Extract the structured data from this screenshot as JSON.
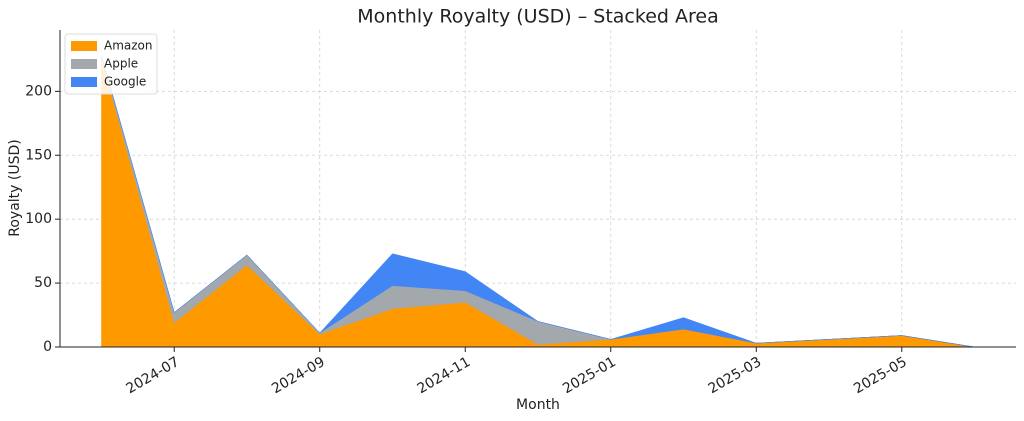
{
  "chart_data": {
    "type": "stacked_area",
    "title": "Monthly Royalty (USD) – Stacked Area",
    "x_label": "Month",
    "y_label": "Royalty (USD)",
    "x": [
      "2024-06",
      "2024-07",
      "2024-08",
      "2024-09",
      "2024-10",
      "2024-11",
      "2024-12",
      "2025-01",
      "2025-02",
      "2025-03",
      "2025-04",
      "2025-05",
      "2025-06"
    ],
    "series": [
      {
        "name": "Amazon",
        "color": "#ff9900",
        "values": [
          226,
          19,
          64,
          10,
          30,
          35,
          2,
          6,
          14,
          3,
          6,
          9,
          0
        ]
      },
      {
        "name": "Apple",
        "color": "#a2a8ab",
        "values": [
          2,
          8,
          8,
          1,
          18,
          9,
          18,
          0,
          0,
          0,
          0,
          0,
          0
        ]
      },
      {
        "name": "Google",
        "color": "#4285f4",
        "values": [
          0,
          0,
          0,
          0,
          25,
          15,
          0,
          0,
          9,
          0,
          0,
          0,
          0
        ]
      }
    ],
    "xticks": [
      "2024-07",
      "2024-09",
      "2024-11",
      "2025-01",
      "2025-03",
      "2025-05"
    ],
    "ylim": [
      0,
      248
    ],
    "yticks": [
      0,
      50,
      100,
      150,
      200
    ],
    "grid": true,
    "legend": "upper left"
  }
}
